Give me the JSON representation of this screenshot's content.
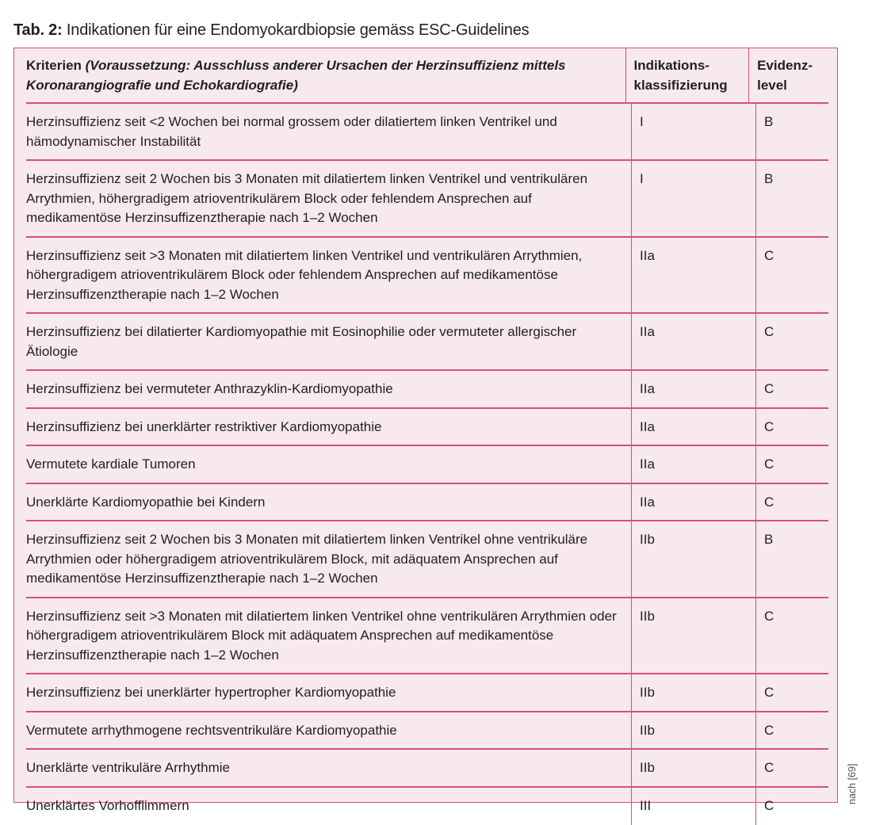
{
  "caption": {
    "label": "Tab. 2:",
    "text": " Indikationen für eine Endomyokardbiopsie gemäss ESC-Guidelines"
  },
  "colors": {
    "border": "#d4507a",
    "background": "#f7e9ec"
  },
  "table": {
    "headers": {
      "criteria_bold": "Kriterien ",
      "criteria_italic": "(Voraussetzung: Ausschluss anderer Ursachen der Herzinsuffizienz mittels Koronarangiografie und Echokardiografie)",
      "class": "Indikations-klassifizierung",
      "evidence": "Evidenz-level"
    },
    "rows": [
      {
        "criteria": "Herzinsuffizienz seit <2 Wochen bei normal grossem oder dilatiertem linken Ventrikel und hämodynamischer Instabilität",
        "class": "I",
        "evidence": "B"
      },
      {
        "criteria": "Herzinsuffizienz seit 2 Wochen bis 3 Monaten mit dilatiertem linken Ventrikel und ventrikulären Arrythmien, höhergradigem atrioventrikulärem Block oder fehlendem Ansprechen auf medikamentöse Herzinsuffizenztherapie nach 1–2 Wochen",
        "class": "I",
        "evidence": "B"
      },
      {
        "criteria": "Herzinsuffizienz seit >3 Monaten mit dilatiertem linken Ventrikel und ventrikulären Arrythmien, höhergradigem atrioventrikulärem Block oder fehlendem Ansprechen auf medikamentöse Herzinsuffizenztherapie nach 1–2 Wochen",
        "class": "IIa",
        "evidence": "C"
      },
      {
        "criteria": "Herzinsuffizienz bei dilatierter Kardiomyopathie mit Eosinophilie oder vermuteter allergischer Ätiologie",
        "class": "IIa",
        "evidence": "C"
      },
      {
        "criteria": "Herzinsuffizienz bei vermuteter Anthrazyklin-Kardiomyopathie",
        "class": "IIa",
        "evidence": "C"
      },
      {
        "criteria": "Herzinsuffizienz bei unerklärter restriktiver Kardiomyopathie",
        "class": "IIa",
        "evidence": "C"
      },
      {
        "criteria": "Vermutete kardiale Tumoren",
        "class": "IIa",
        "evidence": "C"
      },
      {
        "criteria": "Unerklärte Kardiomyopathie bei Kindern",
        "class": "IIa",
        "evidence": "C"
      },
      {
        "criteria": "Herzinsuffizienz seit 2 Wochen bis 3 Monaten mit dilatiertem linken Ventrikel ohne ventrikuläre Arrythmien oder höhergradigem atrioventrikulärem Block, mit adäquatem Ansprechen auf medikamentöse Herzinsuffizenztherapie nach 1–2 Wochen",
        "class": "IIb",
        "evidence": "B"
      },
      {
        "criteria": "Herzinsuffizienz seit >3 Monaten mit dilatiertem linken Ventrikel ohne ventrikulären Arrythmien oder höhergradigem atrioventrikulärem Block mit adäquatem Ansprechen auf medikamentöse Herzinsuffizenztherapie nach 1–2 Wochen",
        "class": "IIb",
        "evidence": "C"
      },
      {
        "criteria": "Herzinsuffizienz bei unerklärter hypertropher Kardiomyopathie",
        "class": "IIb",
        "evidence": "C"
      },
      {
        "criteria": "Vermutete arrhythmogene rechtsventrikuläre Kardiomyopathie",
        "class": "IIb",
        "evidence": "C"
      },
      {
        "criteria": "Unerklärte ventrikuläre Arrhythmie",
        "class": "IIb",
        "evidence": "C"
      },
      {
        "criteria": "Unerklärtes Vorhofflimmern",
        "class": "III",
        "evidence": "C"
      }
    ]
  },
  "source": "nach [69]"
}
